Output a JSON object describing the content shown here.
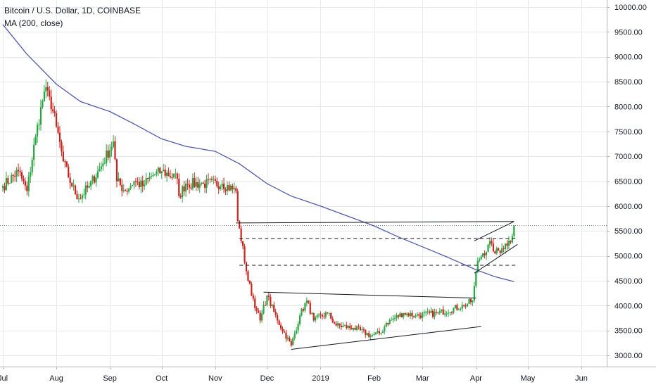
{
  "legend": {
    "title": "Bitcoin / U.S. Dollar, 1D, COINBASE",
    "indicator": "MA (200, close)"
  },
  "colors": {
    "up": "#26a541",
    "down": "#c9221a",
    "ma": "#4f5aa8",
    "trend": "#131722",
    "priceLine": "#7a7f8a",
    "grid": "#e6e9ef"
  },
  "chart_data": {
    "type": "candlestick",
    "title": "Bitcoin / U.S. Dollar, 1D, COINBASE",
    "ylim": [
      2800,
      10150
    ],
    "y_ticks": [
      "10000.00",
      "9500.00",
      "9000.00",
      "8500.00",
      "8000.00",
      "7500.00",
      "7000.00",
      "6500.00",
      "6000.00",
      "5500.00",
      "5000.00",
      "4500.00",
      "4000.00",
      "3500.00",
      "3000.00"
    ],
    "x_ticks": [
      "Jul",
      "Aug",
      "Sep",
      "Oct",
      "Nov",
      "Dec",
      "2019",
      "Feb",
      "Mar",
      "Apr",
      "May",
      "Jun"
    ],
    "x_tick_dates": [
      "2018-07-01",
      "2018-08-01",
      "2018-09-01",
      "2018-10-01",
      "2018-11-01",
      "2018-12-01",
      "2019-01-01",
      "2019-02-01",
      "2019-03-01",
      "2019-04-01",
      "2019-05-01",
      "2019-06-01"
    ],
    "close_anchors": [
      [
        "2018-07-01",
        6400
      ],
      [
        "2018-07-10",
        6700
      ],
      [
        "2018-07-15",
        6300
      ],
      [
        "2018-07-20",
        7400
      ],
      [
        "2018-07-25",
        8300
      ],
      [
        "2018-07-28",
        8200
      ],
      [
        "2018-08-01",
        7600
      ],
      [
        "2018-08-05",
        6900
      ],
      [
        "2018-08-10",
        6400
      ],
      [
        "2018-08-14",
        6150
      ],
      [
        "2018-08-20",
        6400
      ],
      [
        "2018-08-27",
        6800
      ],
      [
        "2018-09-03",
        7300
      ],
      [
        "2018-09-05",
        6500
      ],
      [
        "2018-09-10",
        6300
      ],
      [
        "2018-09-15",
        6500
      ],
      [
        "2018-09-20",
        6400
      ],
      [
        "2018-09-25",
        6600
      ],
      [
        "2018-10-01",
        6700
      ],
      [
        "2018-10-10",
        6550
      ],
      [
        "2018-10-11",
        6200
      ],
      [
        "2018-10-15",
        6450
      ],
      [
        "2018-10-25",
        6450
      ],
      [
        "2018-11-05",
        6450
      ],
      [
        "2018-11-13",
        6300
      ],
      [
        "2018-11-14",
        5700
      ],
      [
        "2018-11-15",
        5550
      ],
      [
        "2018-11-20",
        4500
      ],
      [
        "2018-11-25",
        3900
      ],
      [
        "2018-11-27",
        3700
      ],
      [
        "2018-12-01",
        4200
      ],
      [
        "2018-12-07",
        3700
      ],
      [
        "2018-12-15",
        3200
      ],
      [
        "2018-12-20",
        3800
      ],
      [
        "2018-12-24",
        4100
      ],
      [
        "2018-12-28",
        3700
      ],
      [
        "2019-01-05",
        3850
      ],
      [
        "2019-01-10",
        3600
      ],
      [
        "2019-01-20",
        3550
      ],
      [
        "2019-01-30",
        3400
      ],
      [
        "2019-02-05",
        3450
      ],
      [
        "2019-02-08",
        3650
      ],
      [
        "2019-02-18",
        3850
      ],
      [
        "2019-02-25",
        3800
      ],
      [
        "2019-03-10",
        3850
      ],
      [
        "2019-03-25",
        4000
      ],
      [
        "2019-03-30",
        4100
      ],
      [
        "2019-04-02",
        4900
      ],
      [
        "2019-04-05",
        5050
      ],
      [
        "2019-04-10",
        5250
      ],
      [
        "2019-04-12",
        5050
      ],
      [
        "2019-04-16",
        5150
      ],
      [
        "2019-04-20",
        5300
      ],
      [
        "2019-04-22",
        5400
      ],
      [
        "2019-04-23",
        5600
      ]
    ],
    "ma200": {
      "name": "MA (200, close)",
      "points": [
        [
          "2018-07-01",
          9650
        ],
        [
          "2018-07-15",
          9050
        ],
        [
          "2018-08-01",
          8450
        ],
        [
          "2018-08-15",
          8100
        ],
        [
          "2018-09-01",
          7900
        ],
        [
          "2018-09-15",
          7650
        ],
        [
          "2018-10-01",
          7350
        ],
        [
          "2018-10-15",
          7200
        ],
        [
          "2018-11-01",
          7100
        ],
        [
          "2018-11-15",
          6850
        ],
        [
          "2018-12-01",
          6450
        ],
        [
          "2018-12-15",
          6200
        ],
        [
          "2019-01-01",
          6000
        ],
        [
          "2019-01-15",
          5820
        ],
        [
          "2019-02-01",
          5600
        ],
        [
          "2019-02-15",
          5380
        ],
        [
          "2019-03-01",
          5180
        ],
        [
          "2019-03-15",
          4980
        ],
        [
          "2019-04-01",
          4720
        ],
        [
          "2019-04-12",
          4580
        ],
        [
          "2019-04-23",
          4480
        ]
      ]
    },
    "current_price": 5620,
    "trendlines": [
      {
        "style": "solid",
        "from": [
          "2018-11-13",
          5660
        ],
        "to": [
          "2019-04-23",
          5690
        ]
      },
      {
        "style": "dashed",
        "from": [
          "2018-11-15",
          5350
        ],
        "to": [
          "2019-04-24",
          5350
        ]
      },
      {
        "style": "dashed",
        "from": [
          "2018-11-15",
          4810
        ],
        "to": [
          "2019-04-24",
          4810
        ]
      },
      {
        "style": "solid",
        "from": [
          "2018-11-29",
          4270
        ],
        "to": [
          "2019-04-01",
          4150
        ]
      },
      {
        "style": "solid",
        "from": [
          "2018-12-15",
          3120
        ],
        "to": [
          "2019-04-04",
          3580
        ]
      },
      {
        "style": "solid",
        "from": [
          "2019-03-31",
          5300
        ],
        "to": [
          "2019-04-23",
          5690
        ]
      },
      {
        "style": "solid",
        "from": [
          "2019-03-31",
          4650
        ],
        "to": [
          "2019-04-25",
          5230
        ]
      }
    ],
    "grid": true
  }
}
